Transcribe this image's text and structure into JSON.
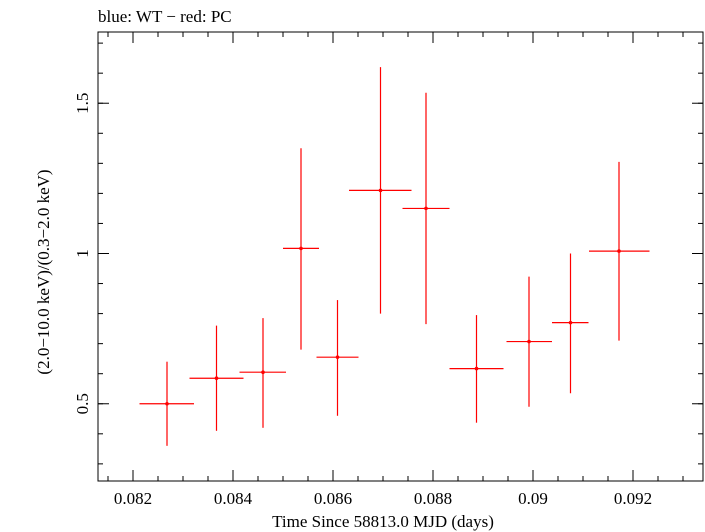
{
  "chart_data": {
    "type": "scatter",
    "title": "blue: WT − red: PC",
    "xlabel": "Time Since 58813.0 MJD (days)",
    "ylabel": "(2.0−10.0 keV)/(0.3−2.0 keV)",
    "xlim": [
      0.0813,
      0.0934
    ],
    "ylim": [
      0.243,
      1.737
    ],
    "x_ticks": [
      0.082,
      0.084,
      0.086,
      0.088,
      0.09,
      0.092
    ],
    "x_tick_labels": [
      "0.082",
      "0.084",
      "0.086",
      "0.088",
      "0.09",
      "0.092"
    ],
    "y_ticks": [
      0.5,
      1,
      1.5
    ],
    "y_tick_labels": [
      "0.5",
      "1",
      "1.5"
    ],
    "grid": false,
    "series": [
      {
        "name": "PC",
        "color": "#ff0000",
        "points": [
          {
            "x": 0.08268,
            "y": 0.5,
            "xlo": 0.08213,
            "xhi": 0.08322,
            "ylo": 0.36,
            "yhi": 0.64
          },
          {
            "x": 0.08367,
            "y": 0.585,
            "xlo": 0.08313,
            "xhi": 0.08421,
            "ylo": 0.41,
            "yhi": 0.76
          },
          {
            "x": 0.0846,
            "y": 0.605,
            "xlo": 0.08413,
            "xhi": 0.08506,
            "ylo": 0.42,
            "yhi": 0.785
          },
          {
            "x": 0.08536,
            "y": 1.017,
            "xlo": 0.085,
            "xhi": 0.08572,
            "ylo": 0.68,
            "yhi": 1.35
          },
          {
            "x": 0.08609,
            "y": 0.655,
            "xlo": 0.08567,
            "xhi": 0.08651,
            "ylo": 0.46,
            "yhi": 0.845
          },
          {
            "x": 0.08695,
            "y": 1.21,
            "xlo": 0.08632,
            "xhi": 0.08757,
            "ylo": 0.8,
            "yhi": 1.62
          },
          {
            "x": 0.08786,
            "y": 1.15,
            "xlo": 0.08739,
            "xhi": 0.08833,
            "ylo": 0.765,
            "yhi": 1.535
          },
          {
            "x": 0.08887,
            "y": 0.617,
            "xlo": 0.08833,
            "xhi": 0.08941,
            "ylo": 0.437,
            "yhi": 0.795
          },
          {
            "x": 0.08992,
            "y": 0.707,
            "xlo": 0.08947,
            "xhi": 0.09038,
            "ylo": 0.49,
            "yhi": 0.923
          },
          {
            "x": 0.09075,
            "y": 0.77,
            "xlo": 0.09038,
            "xhi": 0.09111,
            "ylo": 0.535,
            "yhi": 1.0
          },
          {
            "x": 0.09172,
            "y": 1.008,
            "xlo": 0.09112,
            "xhi": 0.09233,
            "ylo": 0.71,
            "yhi": 1.305
          }
        ]
      }
    ]
  }
}
